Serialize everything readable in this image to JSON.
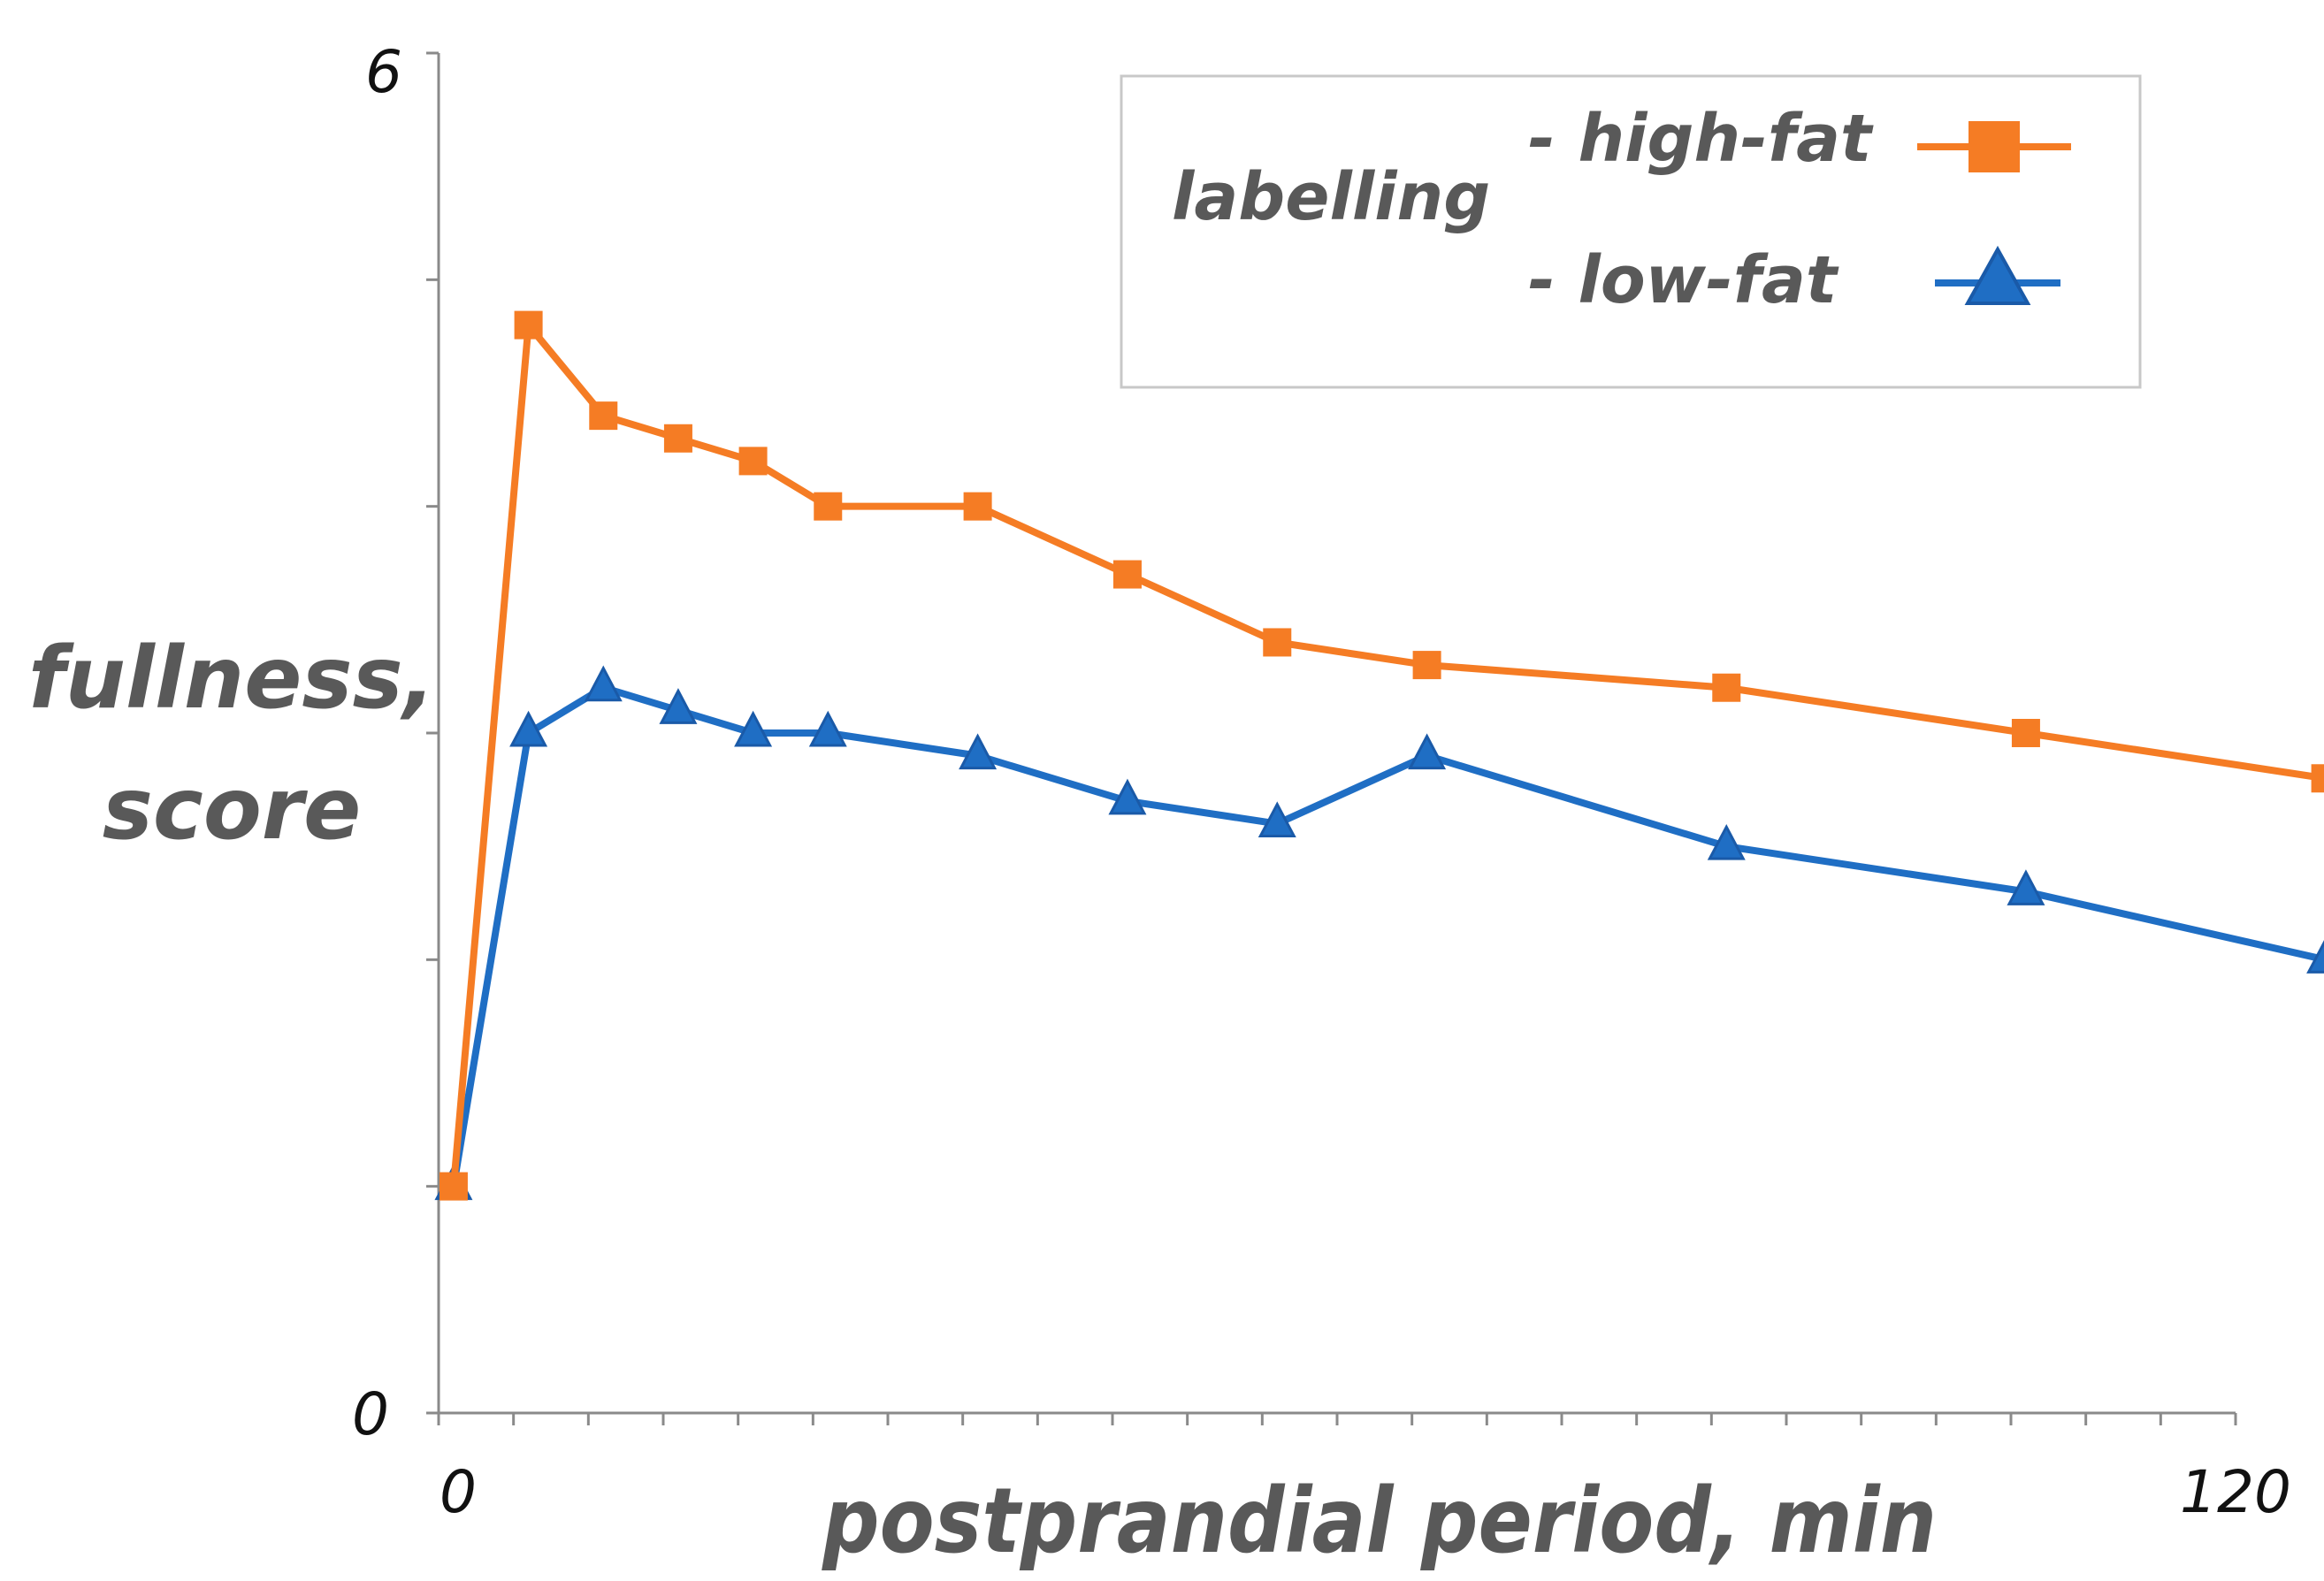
{
  "chart_data": {
    "type": "line",
    "title": "",
    "xlabel": "postprandial period, min",
    "ylabel": [
      "fullness,",
      "score"
    ],
    "xlim": [
      0,
      120
    ],
    "ylim": [
      0,
      6
    ],
    "x_tick_labels": [
      "0",
      "120"
    ],
    "y_tick_labels": [
      "0",
      "6"
    ],
    "y_ticks": [
      0,
      1,
      2,
      3,
      4,
      5,
      6
    ],
    "x_minor_tick_step": 5,
    "grid": false,
    "legend": {
      "title": "labelling",
      "position": "top-right",
      "entries": [
        "- high-fat",
        "- low-fat"
      ]
    },
    "series": [
      {
        "name": "- high-fat",
        "color": "#F57C24",
        "marker": "square",
        "x": [
          1,
          6,
          11,
          16,
          21,
          26,
          36,
          46,
          56,
          66,
          86,
          106,
          126
        ],
        "y": [
          1.0,
          4.8,
          4.4,
          4.3,
          4.2,
          4.0,
          4.0,
          3.7,
          3.4,
          3.3,
          3.2,
          3.0,
          2.8
        ]
      },
      {
        "name": "- low-fat",
        "color": "#1F6EC4",
        "marker": "triangle",
        "x": [
          1,
          6,
          11,
          16,
          21,
          26,
          36,
          46,
          56,
          66,
          86,
          106,
          126
        ],
        "y": [
          1.0,
          3.0,
          3.2,
          3.1,
          3.0,
          3.0,
          2.9,
          2.7,
          2.6,
          2.9,
          2.5,
          2.3,
          2.0
        ]
      }
    ]
  }
}
